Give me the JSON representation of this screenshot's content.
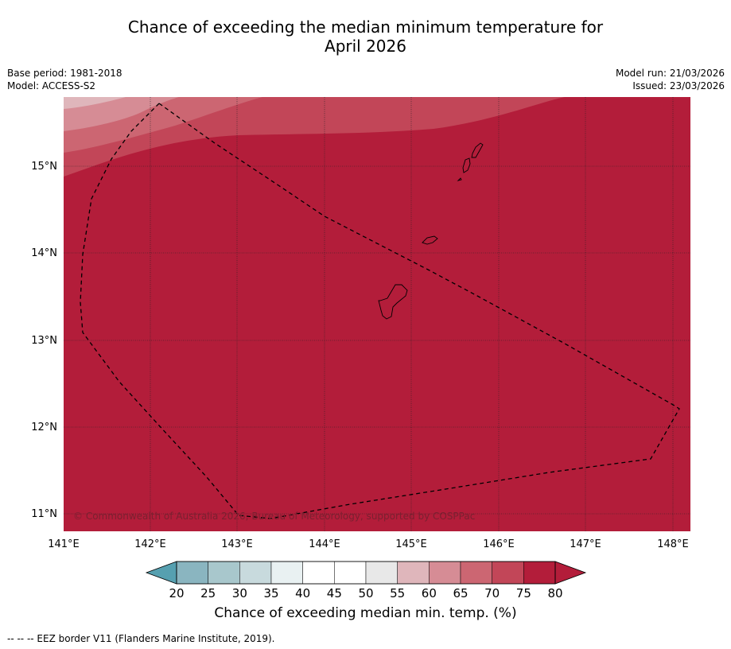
{
  "title": {
    "line1": "Chance of exceeding the median minimum temperature for",
    "line2": "April 2026"
  },
  "meta": {
    "base_period": "Base period: 1981-2018",
    "model": "Model: ACCESS-S2",
    "model_run": "Model run: 21/03/2026",
    "issued": "Issued: 23/03/2026"
  },
  "map": {
    "lon_ticks": [
      "141°E",
      "142°E",
      "143°E",
      "144°E",
      "145°E",
      "146°E",
      "147°E",
      "148°E"
    ],
    "lat_ticks": [
      "15°N",
      "14°N",
      "13°N",
      "12°N",
      "11°N"
    ],
    "copyright": "© Commonwealth of Australia 2026, Bureau of Meteorology, supported by COSPPac",
    "lon_range": [
      141,
      148.2
    ],
    "lat_range": [
      10.8,
      15.8
    ]
  },
  "colorbar": {
    "ticks": [
      "20",
      "25",
      "30",
      "35",
      "40",
      "45",
      "50",
      "55",
      "60",
      "65",
      "70",
      "75",
      "80"
    ],
    "colors": [
      "#66a9b8",
      "#8ab5c0",
      "#a8c7cc",
      "#c8dadd",
      "#e9f1f2",
      "#ffffff",
      "#ffffff",
      "#e8e8e8",
      "#dfb6bb",
      "#d68c95",
      "#cc6672",
      "#c24658",
      "#b31d3a"
    ],
    "under_color": "#56a0b0",
    "label": "Chance of exceeding median min. temp. (%)"
  },
  "footnote": "--  --  -- EEZ border V11 (Flanders Marine Institute, 2019).",
  "colors": {
    "dominant": "#b31d3a"
  }
}
